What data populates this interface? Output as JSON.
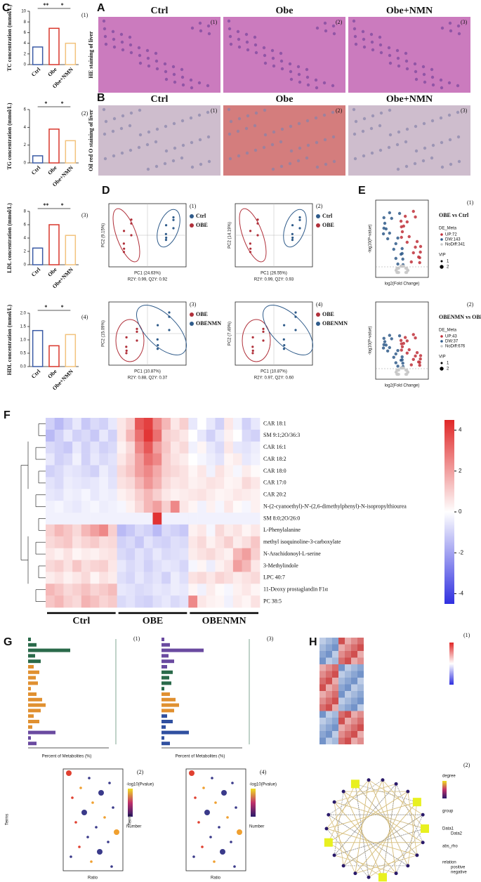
{
  "figure_labels": {
    "A": "A",
    "B": "B",
    "C": "C",
    "D": "D",
    "E": "E",
    "F": "F",
    "G": "G",
    "H": "H"
  },
  "panel_A": {
    "titles": [
      "Ctrl",
      "Obe",
      "Obe+NMN"
    ],
    "side_label": "HE staining of liver",
    "tags": [
      "(1)",
      "(2)",
      "(3)"
    ]
  },
  "panel_B": {
    "titles": [
      "Ctrl",
      "Obe",
      "Obe+NMN"
    ],
    "side_label": "Oil red O staining of liver",
    "tags": [
      "(1)",
      "(2)",
      "(3)"
    ]
  },
  "chart_data": [
    {
      "type": "bar",
      "tag": "(1)",
      "ylabel": "TC concentration (mmol/L)",
      "categories": [
        "Ctrl",
        "Obe",
        "Obe+NMN"
      ],
      "values": [
        3.3,
        6.8,
        4.0
      ],
      "colors": [
        "#3b5ba5",
        "#d9362b",
        "#f2c27c"
      ],
      "ylim": [
        0,
        10
      ],
      "yticks": [
        0,
        2,
        4,
        6,
        8,
        10
      ],
      "annotations": [
        "**",
        "*"
      ]
    },
    {
      "type": "bar",
      "tag": "(2)",
      "ylabel": "TG concentration (mmol/L)",
      "categories": [
        "Ctrl",
        "Obe",
        "Obe+NMN"
      ],
      "values": [
        0.8,
        3.8,
        2.5
      ],
      "colors": [
        "#3b5ba5",
        "#d9362b",
        "#f2c27c"
      ],
      "ylim": [
        0,
        6
      ],
      "yticks": [
        0,
        2,
        4,
        6
      ],
      "annotations": [
        "*",
        "*"
      ]
    },
    {
      "type": "bar",
      "tag": "(3)",
      "ylabel": "LDL concentration (mmol/L)",
      "categories": [
        "Ctrl",
        "Obe",
        "Obe+NMN"
      ],
      "values": [
        2.5,
        6.0,
        4.4
      ],
      "colors": [
        "#3b5ba5",
        "#d9362b",
        "#f2c27c"
      ],
      "ylim": [
        0,
        8
      ],
      "yticks": [
        0,
        2,
        4,
        6,
        8
      ],
      "annotations": [
        "**",
        "*"
      ]
    },
    {
      "type": "bar",
      "tag": "(4)",
      "ylabel": "HDL concentration (mmol/L)",
      "categories": [
        "Ctrl",
        "Obe",
        "Obe+NMN"
      ],
      "values": [
        1.35,
        0.78,
        1.2
      ],
      "colors": [
        "#3b5ba5",
        "#d9362b",
        "#f2c27c"
      ],
      "ylim": [
        0,
        2
      ],
      "yticks": [
        {
          "value": 0,
          "label": "0.0"
        },
        0.5,
        {
          "value": 1,
          "label": "1.0"
        },
        1.5,
        {
          "value": 2,
          "label": "2.0"
        }
      ],
      "annotations": [
        "*",
        "*"
      ]
    },
    {
      "type": "heatmap",
      "rows": [
        "CAR 18:1",
        "SM 9:1;2O/36:3",
        "CAR 16:1",
        "CAR 18:2",
        "CAR 18:0",
        "CAR 17:0",
        "CAR 20:2",
        "N-(2-cyanoethyl)-N'-(2,6-dimethylphenyl)-N-isopropylthiourea",
        "SM 8:0;2O/26:0",
        "L-Phenylalanine",
        "methyl isoquinoline-3-carboxylate",
        "N-Arachidonoyl-L-serine",
        "3-Methylindole",
        "LPC 40:7",
        "11-Deoxy prostaglandin F1α",
        "PC 38:5"
      ],
      "groups": [
        "Ctrl",
        "OBE",
        "OBENMN"
      ],
      "values": [
        [
          -1,
          -1.5,
          -1,
          -0.5,
          -1.2,
          -0.8,
          -1,
          -0.5,
          0.5,
          1,
          3.5,
          4,
          2.5,
          1.5,
          0.5,
          1,
          -0.5,
          0,
          -0.5,
          -1,
          0.5,
          -0.3,
          -1,
          -0.5
        ],
        [
          -1.5,
          -1,
          -0.5,
          -1,
          -0.8,
          -1.2,
          -0.5,
          -1,
          0.5,
          1.5,
          3,
          4.2,
          3,
          1,
          0.8,
          0.5,
          0,
          -0.5,
          -1,
          -0.5,
          0.3,
          0,
          -0.8,
          -1
        ],
        [
          -0.8,
          -1,
          -1.2,
          -0.5,
          -1,
          -0.6,
          -1,
          -0.8,
          0.3,
          0.8,
          2.5,
          3.5,
          2,
          1.2,
          0.5,
          0.8,
          -0.3,
          0.2,
          -0.5,
          -0.8,
          0.5,
          -0.5,
          -0.6,
          -0.4
        ],
        [
          -0.5,
          -1,
          -0.8,
          -0.3,
          -1,
          -0.5,
          -0.8,
          -0.6,
          0.5,
          1,
          2,
          3,
          2.5,
          1,
          0.6,
          0.4,
          0,
          -0.2,
          -0.4,
          -0.6,
          0.2,
          0.4,
          -0.5,
          -0.3
        ],
        [
          -1,
          -0.8,
          -0.5,
          -0.6,
          -0.8,
          -1,
          -0.4,
          -0.7,
          0.8,
          1.2,
          2,
          2.5,
          1.8,
          1,
          0.8,
          0.6,
          0.2,
          0.5,
          -0.3,
          0.6,
          0.3,
          -0.2,
          0.4,
          0.1
        ],
        [
          -0.6,
          -0.8,
          -0.4,
          -0.5,
          -0.6,
          -0.5,
          -0.3,
          -0.6,
          0.6,
          0.8,
          1.5,
          2.2,
          1.6,
          0.8,
          0.5,
          0.6,
          0.3,
          0.4,
          0.6,
          0.5,
          0.2,
          0.3,
          0.8,
          0.5
        ],
        [
          -0.5,
          -0.6,
          -0.3,
          -0.4,
          -0.2,
          -0.5,
          -0.3,
          -0.4,
          0.3,
          0.5,
          1,
          1.5,
          1,
          0.5,
          0.3,
          0.4,
          0.5,
          0.6,
          0.4,
          0.2,
          0.3,
          0.5,
          0.4,
          0.3
        ],
        [
          -0.3,
          -0.2,
          -0.4,
          -0.5,
          -0.3,
          -0.2,
          -0.4,
          -0.3,
          -0.2,
          0.3,
          0.8,
          1.5,
          2,
          1,
          2.5,
          0.5,
          0.2,
          -0.3,
          0.3,
          -0.2,
          0.5,
          0.1,
          -0.2,
          0.3
        ],
        [
          -0.3,
          -0.3,
          -0.3,
          -0.3,
          -0.3,
          -0.3,
          -0.3,
          -0.3,
          -0.3,
          -0.3,
          -0.3,
          -0.3,
          4.3,
          -0.3,
          -0.3,
          -0.3,
          -0.3,
          -0.3,
          -0.3,
          -0.3,
          -0.3,
          -0.3,
          -0.3,
          -0.3
        ],
        [
          1,
          1.5,
          1.2,
          0.8,
          1.5,
          2,
          2.5,
          1,
          -1.5,
          -1.2,
          -0.8,
          -1,
          -1.5,
          -0.8,
          -1,
          -1.2,
          0.3,
          0.5,
          -0.2,
          0.8,
          0.4,
          0.6,
          0.2,
          0.5
        ],
        [
          0.8,
          1,
          1.2,
          0.6,
          0.9,
          1.1,
          0.7,
          0.8,
          -1,
          -0.8,
          -1.2,
          -0.6,
          -0.9,
          -1,
          -0.7,
          -0.8,
          0.5,
          0.8,
          0.3,
          0.6,
          1,
          0.4,
          0.7,
          1.2
        ],
        [
          0.5,
          0.3,
          0.6,
          0.2,
          0.4,
          0.3,
          0.5,
          0.6,
          -0.8,
          -1,
          -0.6,
          -0.9,
          -0.5,
          -0.8,
          -0.7,
          -0.6,
          0.4,
          0.6,
          0.8,
          0.5,
          0.3,
          1.5,
          2,
          1
        ],
        [
          0.8,
          1,
          0.6,
          1.2,
          0.7,
          0.9,
          1,
          0.5,
          -0.5,
          -0.8,
          -0.6,
          -1,
          -0.7,
          -0.5,
          -0.6,
          -0.9,
          -0.2,
          0.2,
          -0.4,
          0.3,
          0.6,
          2,
          1.5,
          0.5
        ],
        [
          0.4,
          0.6,
          0.3,
          0.5,
          0.8,
          0.2,
          0.6,
          0.4,
          -0.7,
          -0.9,
          -0.5,
          -0.8,
          -0.6,
          -1,
          -0.4,
          -0.7,
          0.6,
          0.8,
          0.5,
          0.9,
          0.7,
          0.4,
          0.6,
          0.8
        ],
        [
          1.5,
          1.2,
          0.8,
          1,
          1.3,
          0.9,
          1.1,
          1.4,
          -0.5,
          -0.6,
          -0.8,
          -0.7,
          -0.5,
          -0.6,
          -0.4,
          -0.5,
          0.2,
          -0.3,
          0.4,
          0.1,
          -0.2,
          0.3,
          0.5,
          0.2
        ],
        [
          1.2,
          1.5,
          1,
          0.8,
          1.6,
          1.3,
          0.9,
          1.1,
          -0.8,
          -0.6,
          -0.9,
          -1,
          -0.7,
          -0.5,
          -0.8,
          -0.6,
          2.5,
          0.5,
          0.3,
          0.2,
          -0.3,
          0.4,
          0.2,
          0.6
        ]
      ],
      "zlim": [
        -4.5,
        4.5
      ],
      "zticks": [
        4,
        2,
        0,
        -2,
        -4
      ]
    }
  ],
  "panel_D": [
    {
      "tag": "(1)",
      "xlabel": "PC1 (24.63%)",
      "ylabel": "PC2 (9.15%)",
      "stats": "R2Y: 0.99, Q2Y: 0.92",
      "legend": [
        {
          "name": "Ctrl",
          "color": "#2f5b8a"
        },
        {
          "name": "OBE",
          "color": "#b0303a"
        }
      ]
    },
    {
      "tag": "(2)",
      "xlabel": "PC1 (26.55%)",
      "ylabel": "PC2 (14.19%)",
      "stats": "R2Y: 0.99, Q2Y: 0.93",
      "legend": [
        {
          "name": "Ctrl",
          "color": "#2f5b8a"
        },
        {
          "name": "OBE",
          "color": "#b0303a"
        }
      ]
    },
    {
      "tag": "(3)",
      "xlabel": "PC1 (10.87%)",
      "ylabel": "PC2 (15.09%)",
      "stats": "R2Y: 0.88, Q2Y: 0.37",
      "legend": [
        {
          "name": "OBE",
          "color": "#b0303a"
        },
        {
          "name": "OBENMN",
          "color": "#2f5b8a"
        }
      ]
    },
    {
      "tag": "(4)",
      "xlabel": "PC1 (10.87%)",
      "ylabel": "PC2 (7.49%)",
      "stats": "R2Y: 0.97, Q2Y: 0.60",
      "legend": [
        {
          "name": "OBE",
          "color": "#b0303a"
        },
        {
          "name": "OBENMN",
          "color": "#2f5b8a"
        }
      ]
    }
  ],
  "panel_E": [
    {
      "tag": "(1)",
      "title": "OBE vs Ctrl",
      "xlabel": "log2(Fold Change)",
      "ylabel": "-log10(P-value)",
      "legend_title": "DE_Meta",
      "legend": [
        "UP:72",
        "DW:143",
        "NoDiff:341"
      ],
      "size_title": "VIP",
      "sizes": [
        "1",
        "2"
      ]
    },
    {
      "tag": "(2)",
      "title": "OBENMN vs OBE",
      "xlabel": "log2(Fold Change)",
      "ylabel": "-log10(P-value)",
      "legend_title": "DE_Meta",
      "legend": [
        "UP:43",
        "DW:37",
        "NoDiff:676"
      ],
      "size_title": "VIP",
      "sizes": [
        "1",
        "2"
      ]
    }
  ],
  "panel_G": {
    "tags": [
      "(1)",
      "(2)",
      "(3)",
      "(4)"
    ],
    "bar_xlabel": "Percent of Metabolites (%)",
    "dot_xlabel": "Ratio",
    "dot_ylabel": "Terms",
    "color_title": "-log10(Pvalue)",
    "size_title": "Number"
  },
  "panel_H": {
    "tags": [
      "(1)",
      "(2)"
    ],
    "legend": [
      "degree",
      "group",
      "Data1",
      "Data2",
      "abs_rho",
      "relation",
      "positive",
      "negative"
    ]
  }
}
